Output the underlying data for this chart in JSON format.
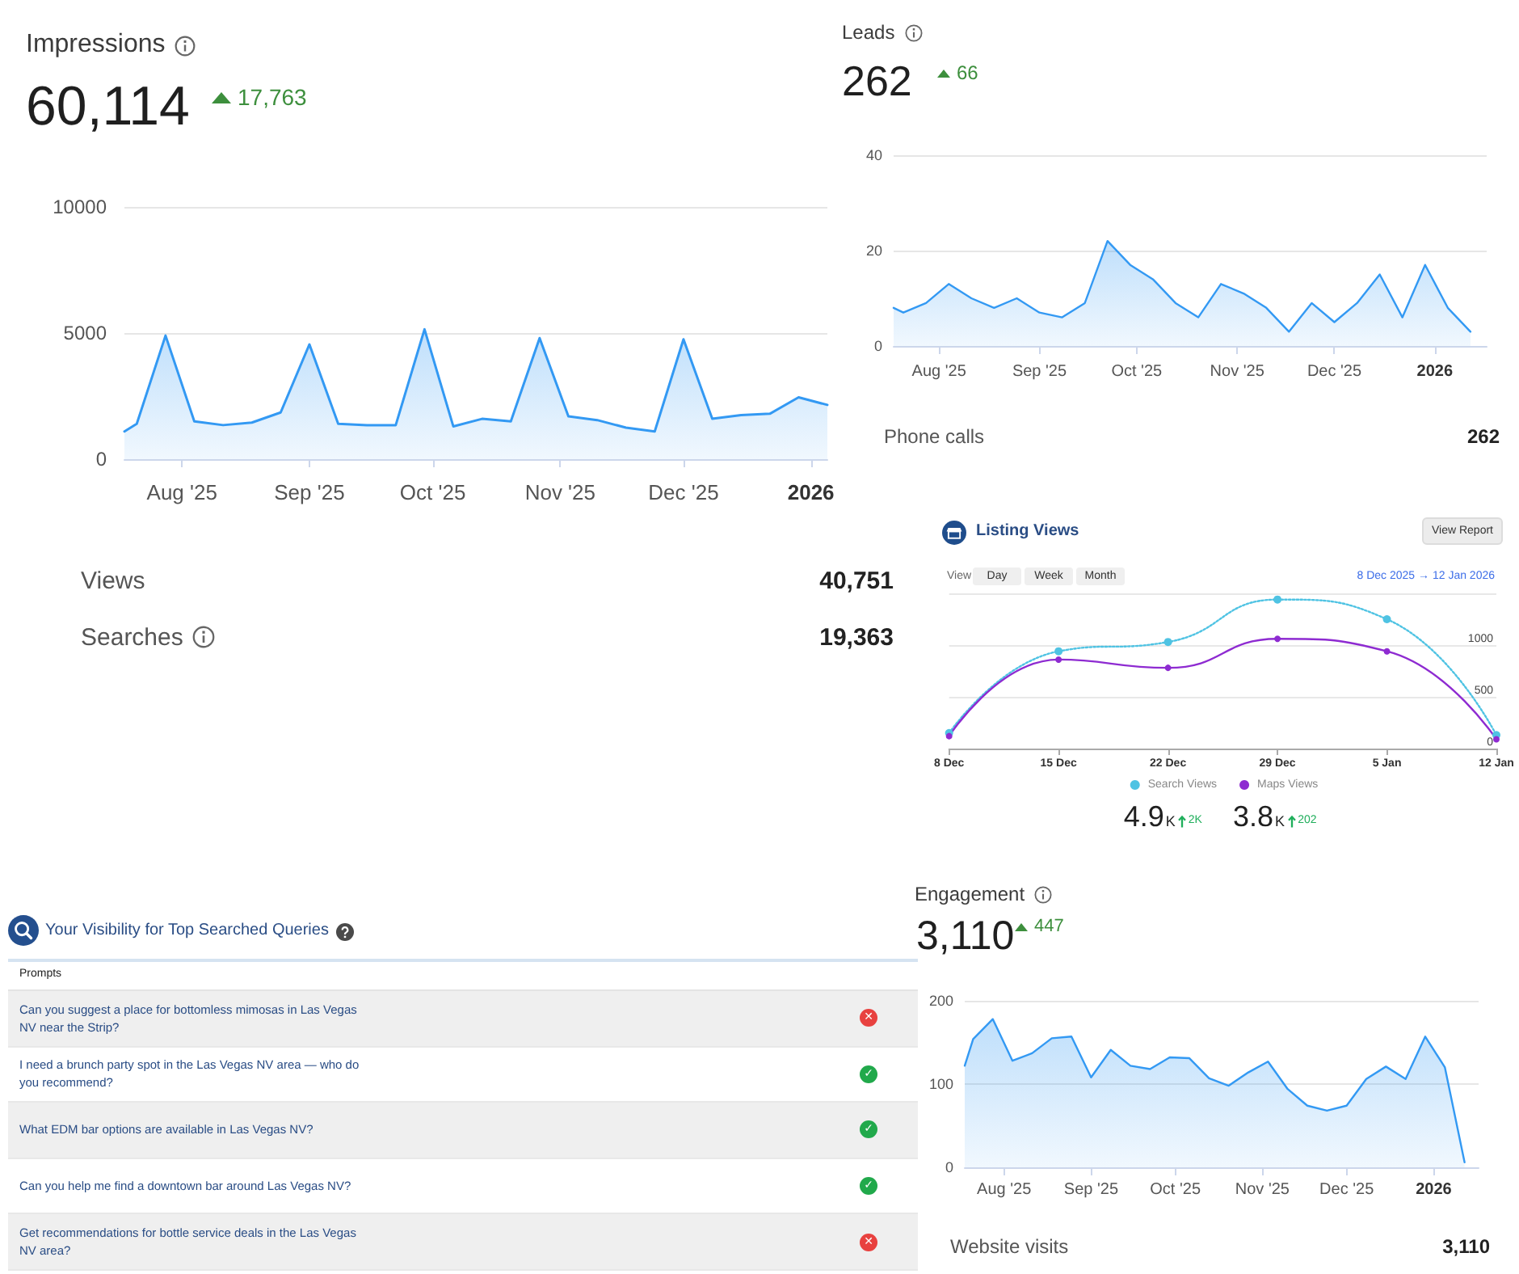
{
  "chart_data": [
    {
      "type": "area",
      "title": "Impressions",
      "x": [
        "2025-07-18",
        "2025-07-21",
        "2025-07-28",
        "2025-08-04",
        "2025-08-11",
        "2025-08-18",
        "2025-08-25",
        "2025-09-01",
        "2025-09-08",
        "2025-09-15",
        "2025-09-22",
        "2025-09-29",
        "2025-10-06",
        "2025-10-13",
        "2025-10-20",
        "2025-10-27",
        "2025-11-03",
        "2025-11-10",
        "2025-11-17",
        "2025-11-24",
        "2025-12-01",
        "2025-12-08",
        "2025-12-15",
        "2025-12-22",
        "2025-12-29",
        "2026-01-05"
      ],
      "values": [
        1100,
        1400,
        4900,
        1500,
        1350,
        1450,
        1850,
        4550,
        1400,
        1350,
        1350,
        5150,
        1300,
        1600,
        1500,
        4800,
        1700,
        1550,
        1250,
        1100,
        4750,
        1600,
        1750,
        1800,
        2450,
        2150
      ],
      "color": "#3399f3",
      "xlim": [
        "2025-07-18",
        "2026-01-05"
      ],
      "xticks": [
        {
          "value": "2025-08-01",
          "label": "Aug '25"
        },
        {
          "value": "2025-09-01",
          "label": "Sep '25"
        },
        {
          "value": "2025-10-01",
          "label": "Oct '25"
        },
        {
          "value": "2025-11-01",
          "label": "Nov '25"
        },
        {
          "value": "2025-12-01",
          "label": "Dec '25"
        },
        {
          "value": "2026-01-01",
          "label": "2026"
        }
      ],
      "ylim": [
        0,
        10000
      ],
      "yticks": [
        0,
        5000,
        10000
      ],
      "grid": "y",
      "annotations": [
        "60,114",
        "17,763",
        "Views",
        "40,751",
        "Searches",
        "19,363"
      ]
    },
    {
      "type": "area",
      "title": "Leads",
      "x": [
        "2025-07-18",
        "2025-07-21",
        "2025-07-28",
        "2025-08-04",
        "2025-08-11",
        "2025-08-18",
        "2025-08-25",
        "2025-09-01",
        "2025-09-08",
        "2025-09-15",
        "2025-09-22",
        "2025-09-29",
        "2025-10-06",
        "2025-10-13",
        "2025-10-20",
        "2025-10-27",
        "2025-11-03",
        "2025-11-10",
        "2025-11-17",
        "2025-11-24",
        "2025-12-01",
        "2025-12-08",
        "2025-12-15",
        "2025-12-22",
        "2025-12-29",
        "2026-01-05",
        "2026-01-12"
      ],
      "values": [
        8,
        7,
        9,
        13,
        10,
        8,
        10,
        7,
        6,
        9,
        22,
        17,
        14,
        9,
        6,
        13,
        11,
        8,
        3,
        9,
        5,
        9,
        15,
        6,
        17,
        8,
        3
      ],
      "color": "#3399f3",
      "xlim": [
        "2025-07-18",
        "2026-01-17"
      ],
      "xticks": [
        {
          "value": "2025-08-01",
          "label": "Aug '25"
        },
        {
          "value": "2025-09-01",
          "label": "Sep '25"
        },
        {
          "value": "2025-10-01",
          "label": "Oct '25"
        },
        {
          "value": "2025-11-01",
          "label": "Nov '25"
        },
        {
          "value": "2025-12-01",
          "label": "Dec '25"
        },
        {
          "value": "2026-01-01",
          "label": "2026"
        }
      ],
      "ylim": [
        0,
        40
      ],
      "yticks": [
        0,
        20,
        40
      ],
      "grid": "y",
      "annotations": [
        "262",
        "66",
        "Phone calls",
        "262"
      ]
    },
    {
      "type": "line",
      "title": "Listing Views",
      "categories": [
        "8 Dec",
        "15 Dec",
        "22 Dec",
        "29 Dec",
        "5 Jan",
        "12 Jan"
      ],
      "series": [
        {
          "name": "Search Views",
          "color": "#4fc3e3",
          "values": [
            150,
            940,
            1030,
            1440,
            1250,
            130
          ],
          "line_style": "dotted"
        },
        {
          "name": "Maps Views",
          "color": "#8e2bd1",
          "values": [
            120,
            860,
            780,
            1060,
            940,
            90
          ],
          "line_style": "solid"
        }
      ],
      "ylim": [
        0,
        1500
      ],
      "yticks": [
        0,
        500,
        1000,
        {
          "value": 1500,
          "label": null
        }
      ],
      "grid": "y",
      "legend": "bottom",
      "marker": "circle",
      "annotations": [
        "View Report",
        "View",
        "Day",
        "Week",
        "Month",
        "8 Dec 2025 → 12 Jan 2026",
        "4.9K",
        "2K",
        "3.8K",
        "202"
      ]
    },
    {
      "type": "other",
      "title": "Your Visibility for Top Searched Queries",
      "xlabel": "Prompts",
      "categories": [
        "Can you suggest a place for bottomless mimosas in Las Vegas NV near the Strip?",
        "I need a brunch party spot in the Las Vegas NV area — who do you recommend?",
        "What EDM bar options are available in Las Vegas NV?",
        "Can you help me find a downtown bar around Las Vegas NV?",
        "Get recommendations for bottle service deals in the Las Vegas NV area?"
      ],
      "value_labels": [
        "✕",
        "✓",
        "✓",
        "✓",
        "✕"
      ]
    },
    {
      "type": "area",
      "title": "Engagement",
      "x": [
        "2025-07-18",
        "2025-07-21",
        "2025-07-28",
        "2025-08-04",
        "2025-08-11",
        "2025-08-18",
        "2025-08-25",
        "2025-09-01",
        "2025-09-08",
        "2025-09-15",
        "2025-09-22",
        "2025-09-29",
        "2025-10-06",
        "2025-10-13",
        "2025-10-20",
        "2025-10-27",
        "2025-11-03",
        "2025-11-10",
        "2025-11-17",
        "2025-11-24",
        "2025-12-01",
        "2025-12-08",
        "2025-12-15",
        "2025-12-22",
        "2025-12-29",
        "2026-01-05",
        "2026-01-12"
      ],
      "values": [
        122,
        154,
        178,
        128,
        137,
        155,
        157,
        108,
        141,
        122,
        118,
        132,
        131,
        107,
        98,
        114,
        127,
        94,
        74,
        68,
        74,
        106,
        121,
        106,
        157,
        120,
        6
      ],
      "color": "#3399f3",
      "xlim": [
        "2025-07-18",
        "2026-01-17"
      ],
      "xticks": [
        {
          "value": "2025-08-01",
          "label": "Aug '25"
        },
        {
          "value": "2025-09-01",
          "label": "Sep '25"
        },
        {
          "value": "2025-10-01",
          "label": "Oct '25"
        },
        {
          "value": "2025-11-01",
          "label": "Nov '25"
        },
        {
          "value": "2025-12-01",
          "label": "Dec '25"
        },
        {
          "value": "2026-01-01",
          "label": "2026"
        }
      ],
      "ylim": [
        0,
        200
      ],
      "yticks": [
        0,
        100,
        200
      ],
      "grid": "y",
      "annotations": [
        "3,110",
        "447",
        "Website visits",
        "3,110"
      ]
    }
  ]
}
